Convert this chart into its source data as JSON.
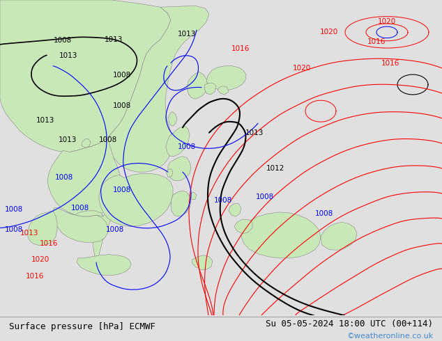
{
  "title_left": "Surface pressure [hPa] ECMWF",
  "title_right": "Su 05-05-2024 18:00 UTC (00+114)",
  "watermark": "©weatheronline.co.uk",
  "bg_color": "#e0e0e0",
  "map_bg_color": "#d8dde8",
  "land_color": "#c8e8b8",
  "land_edge": "#888888",
  "text_color": "#000000",
  "watermark_color": "#4488cc",
  "title_fontsize": 9,
  "watermark_fontsize": 8,
  "figsize": [
    6.34,
    4.9
  ],
  "dpi": 100
}
